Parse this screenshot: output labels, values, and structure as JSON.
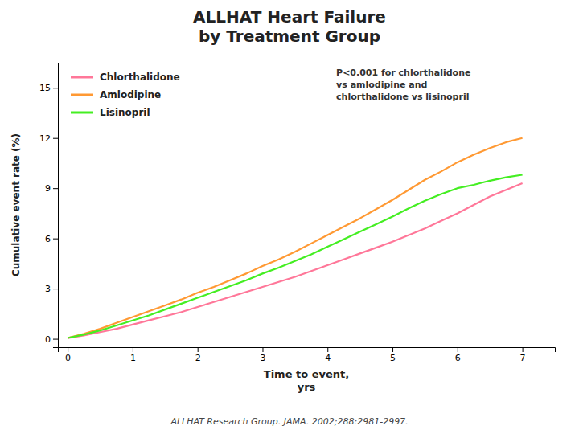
{
  "chart_data": {
    "type": "line",
    "title": "ALLHAT Heart Failure\nby Treatment Group",
    "x_label": "Time to event,\nyrs",
    "y_label": "Cumulative event rate (%)",
    "annotations": [
      "P<0.001 for chlorthalidone\nvs amlodipine and\nchlorthalidone vs lisinopril",
      "ALLHAT Research Group. JAMA. 2002;288:2981-2997."
    ],
    "x": [
      0,
      0.25,
      0.5,
      0.75,
      1,
      1.25,
      1.5,
      1.75,
      2,
      2.25,
      2.5,
      2.75,
      3,
      3.25,
      3.5,
      3.75,
      4,
      4.25,
      4.5,
      4.75,
      5,
      5.25,
      5.5,
      5.75,
      6,
      6.25,
      6.5,
      6.75,
      7
    ],
    "series": [
      {
        "name": "Chlorthalidone",
        "color": "#ff7799",
        "values": [
          0.05,
          0.2,
          0.4,
          0.6,
          0.85,
          1.1,
          1.35,
          1.6,
          1.9,
          2.2,
          2.5,
          2.8,
          3.1,
          3.4,
          3.7,
          4.05,
          4.4,
          4.75,
          5.1,
          5.45,
          5.8,
          6.2,
          6.6,
          7.05,
          7.5,
          8.0,
          8.5,
          8.9,
          9.3
        ]
      },
      {
        "name": "Amlodipine",
        "color": "#ff9933",
        "values": [
          0.05,
          0.3,
          0.6,
          0.95,
          1.3,
          1.65,
          2.0,
          2.35,
          2.75,
          3.1,
          3.5,
          3.9,
          4.35,
          4.75,
          5.2,
          5.7,
          6.2,
          6.7,
          7.2,
          7.75,
          8.3,
          8.9,
          9.5,
          10.0,
          10.55,
          11.0,
          11.4,
          11.75,
          12.0
        ]
      },
      {
        "name": "Lisinopril",
        "color": "#44ee22",
        "values": [
          0.05,
          0.25,
          0.5,
          0.8,
          1.1,
          1.4,
          1.75,
          2.1,
          2.45,
          2.8,
          3.15,
          3.5,
          3.9,
          4.25,
          4.65,
          5.05,
          5.5,
          5.95,
          6.4,
          6.85,
          7.3,
          7.8,
          8.25,
          8.65,
          9.0,
          9.2,
          9.45,
          9.65,
          9.8
        ]
      }
    ],
    "xlim": [
      -0.15,
      7.5
    ],
    "ylim": [
      -0.5,
      16.5
    ],
    "xticks": [
      0,
      1,
      2,
      3,
      4,
      5,
      6,
      7
    ],
    "yticks": [
      0,
      3,
      6,
      9,
      12,
      15
    ],
    "grid": false,
    "legend": "upper left"
  }
}
